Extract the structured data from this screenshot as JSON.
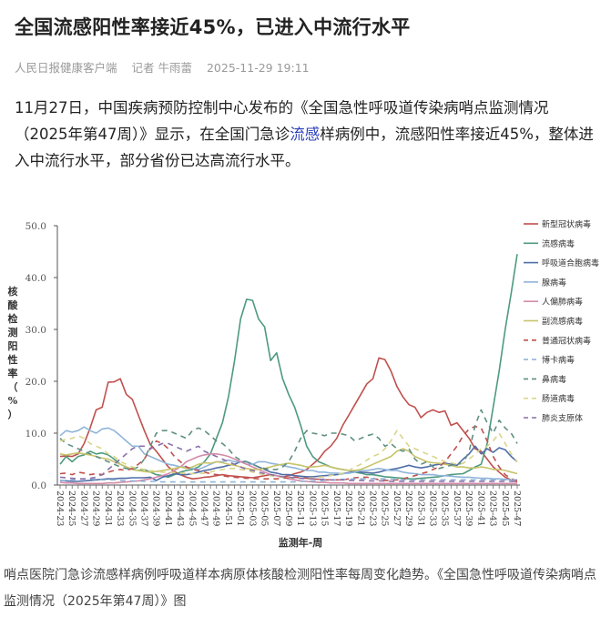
{
  "article": {
    "title": "全国流感阳性率接近45%，已进入中流行水平",
    "source": "人民日报健康客户端",
    "reporter": "记者 牛雨蕾",
    "timestamp": "2025-11-29 19:11",
    "lead_before": "11月27日，中国疾病预防控制中心发布的《全国急性呼吸道传染病哨点监测情况（2025年第47周）》显示，在全国门急诊",
    "lead_link": "流感",
    "lead_after": "样病例中，流感阳性率接近45%，整体进入中流行水平，部分省份已达高流行水平。",
    "caption": "哨点医院门急诊流感样病例呼吸道样本病原体核酸检测阳性率每周变化趋势。《全国急性呼吸道传染病哨点监测情况（2025年第47周）》图"
  },
  "chart_data": {
    "type": "line",
    "title": "",
    "xlabel": "监测年-周",
    "ylabel": "核酸检测阳性率（%）",
    "ylim": [
      0,
      50
    ],
    "yticks": [
      "0.0",
      "10.0",
      "20.0",
      "30.0",
      "40.0",
      "50.0"
    ],
    "grid": false,
    "legend_position": "right",
    "x_tick_labels": [
      "2024-23",
      "2024-25",
      "2024-27",
      "2024-29",
      "2024-31",
      "2024-33",
      "2024-35",
      "2024-37",
      "2024-39",
      "2024-41",
      "2024-43",
      "2024-45",
      "2024-47",
      "2024-49",
      "2024-51",
      "2025-01",
      "2025-03",
      "2025-05",
      "2025-07",
      "2025-09",
      "2025-11",
      "2025-13",
      "2025-15",
      "2025-17",
      "2025-19",
      "2025-21",
      "2025-23",
      "2025-25",
      "2025-27",
      "2025-29",
      "2025-31",
      "2025-33",
      "2025-35",
      "2025-37",
      "2025-39",
      "2025-41",
      "2025-43",
      "2025-45",
      "2025-47"
    ],
    "x_count": 77,
    "series": [
      {
        "name": "新型冠状病毒",
        "color": "#c0504d",
        "dash": false,
        "values": [
          5.5,
          5.6,
          5.5,
          6.0,
          8.0,
          11.0,
          14.5,
          15.0,
          19.8,
          19.9,
          20.5,
          17.5,
          16.5,
          13.5,
          10.5,
          7.8,
          6.5,
          5.0,
          3.5,
          2.6,
          2.0,
          1.5,
          1.2,
          1.3,
          1.5,
          1.6,
          1.8,
          2.0,
          1.8,
          1.7,
          1.6,
          1.5,
          1.4,
          1.6,
          1.8,
          2.0,
          1.8,
          1.5,
          1.8,
          2.2,
          2.5,
          3.0,
          4.0,
          5.0,
          6.5,
          7.5,
          9.0,
          11.5,
          13.5,
          15.5,
          17.5,
          19.5,
          20.5,
          24.5,
          24.2,
          22.0,
          19.0,
          17.0,
          15.5,
          15.0,
          13.0,
          14.0,
          14.5,
          14.0,
          14.3,
          11.5,
          12.0,
          10.5,
          9.0,
          7.0,
          6.5,
          5.0,
          3.5,
          2.5,
          1.5,
          1.0,
          0.6
        ]
      },
      {
        "name": "流感病毒",
        "color": "#4e9a7e",
        "dash": false,
        "values": [
          4.0,
          5.5,
          4.5,
          5.5,
          5.8,
          6.5,
          6.0,
          6.2,
          5.8,
          5.0,
          4.0,
          3.5,
          3.0,
          2.8,
          3.0,
          2.5,
          2.0,
          1.8,
          1.5,
          2.0,
          2.5,
          2.8,
          3.0,
          3.5,
          4.5,
          6.0,
          9.0,
          12.0,
          17.0,
          24.0,
          32.0,
          35.8,
          35.6,
          32.0,
          30.5,
          24.0,
          25.5,
          20.5,
          17.5,
          15.0,
          11.5,
          7.5,
          5.5,
          4.5,
          4.0,
          3.5,
          3.2,
          3.0,
          2.8,
          2.5,
          2.3,
          2.0,
          2.0,
          1.8,
          1.6,
          1.5,
          1.4,
          1.3,
          1.2,
          1.2,
          1.3,
          1.4,
          1.5,
          1.6,
          1.8,
          2.0,
          2.1,
          2.2,
          2.8,
          3.5,
          4.0,
          8.0,
          15.0,
          22.0,
          30.0,
          37.0,
          44.5
        ]
      },
      {
        "name": "呼吸道合胞病毒",
        "color": "#4f6ea8",
        "dash": false,
        "values": [
          0.9,
          0.8,
          0.7,
          0.7,
          0.8,
          0.9,
          1.0,
          1.1,
          1.2,
          1.2,
          1.3,
          1.3,
          1.4,
          1.4,
          1.4,
          1.5,
          0.9,
          1.5,
          1.8,
          2.2,
          2.0,
          2.0,
          2.2,
          2.5,
          2.8,
          3.0,
          3.3,
          3.5,
          3.8,
          4.0,
          4.5,
          4.5,
          4.0,
          3.5,
          3.0,
          2.5,
          2.3,
          2.0,
          2.0,
          1.8,
          1.7,
          1.6,
          1.6,
          1.7,
          1.8,
          1.9,
          2.0,
          2.2,
          2.4,
          2.6,
          2.5,
          2.4,
          2.3,
          2.5,
          2.8,
          3.0,
          3.2,
          3.5,
          3.8,
          3.5,
          3.3,
          3.5,
          3.8,
          4.0,
          4.2,
          4.0,
          3.8,
          5.0,
          6.0,
          7.5,
          6.0,
          7.0,
          6.3,
          7.2,
          6.8,
          5.5,
          4.5
        ]
      },
      {
        "name": "腺病毒",
        "color": "#8fb4d9",
        "dash": false,
        "values": [
          9.5,
          10.5,
          10.2,
          10.5,
          11.2,
          10.5,
          10.0,
          10.8,
          11.0,
          10.5,
          9.5,
          8.5,
          7.5,
          7.5,
          6.0,
          5.5,
          5.0,
          4.5,
          4.0,
          3.8,
          3.5,
          3.5,
          3.2,
          3.0,
          3.5,
          4.0,
          4.5,
          4.5,
          4.8,
          4.5,
          4.5,
          4.0,
          4.0,
          4.5,
          4.5,
          4.2,
          4.0,
          3.8,
          3.5,
          3.3,
          3.0,
          2.8,
          2.8,
          2.5,
          2.5,
          2.3,
          2.3,
          2.2,
          2.3,
          2.5,
          2.8,
          2.8,
          3.0,
          3.2,
          3.0,
          2.8,
          2.8,
          2.5,
          2.3,
          2.2,
          2.0,
          2.0,
          2.0,
          1.8,
          1.8,
          1.7,
          1.6,
          1.5,
          1.5,
          1.4,
          1.3,
          1.3,
          1.2,
          1.2,
          1.1,
          1.0,
          1.0
        ]
      },
      {
        "name": "人偏肺病毒",
        "color": "#d48aa8",
        "dash": false,
        "values": [
          0.5,
          0.4,
          0.4,
          0.3,
          0.3,
          0.3,
          0.3,
          0.3,
          0.4,
          0.4,
          0.5,
          0.6,
          0.7,
          0.8,
          1.0,
          1.2,
          1.5,
          1.8,
          2.2,
          2.8,
          3.5,
          4.5,
          5.0,
          5.5,
          5.8,
          6.0,
          6.0,
          5.8,
          5.5,
          5.0,
          4.5,
          4.0,
          3.5,
          3.0,
          2.5,
          2.0,
          1.8,
          1.5,
          1.2,
          1.0,
          0.8,
          0.7,
          0.6,
          0.5,
          0.5,
          0.4,
          0.4,
          0.4,
          0.3,
          0.3,
          0.3,
          0.3,
          0.3,
          0.3,
          0.3,
          0.3,
          0.3,
          0.3,
          0.3,
          0.3,
          0.3,
          0.3,
          0.3,
          0.3,
          0.3,
          0.3,
          0.3,
          0.3,
          0.3,
          0.3,
          0.3,
          0.3,
          0.3,
          0.3,
          0.3,
          0.3,
          0.3
        ]
      },
      {
        "name": "副流感病毒",
        "color": "#c7c46a",
        "dash": false,
        "values": [
          6.0,
          5.8,
          6.0,
          6.2,
          6.0,
          5.8,
          5.5,
          5.2,
          5.0,
          4.5,
          4.0,
          3.5,
          3.0,
          2.8,
          2.6,
          2.5,
          2.6,
          2.8,
          3.0,
          3.2,
          3.5,
          3.2,
          3.5,
          4.0,
          4.3,
          4.2,
          4.5,
          4.3,
          4.0,
          3.8,
          3.5,
          3.2,
          3.0,
          3.0,
          3.2,
          3.5,
          3.8,
          4.0,
          4.2,
          4.0,
          3.8,
          3.5,
          3.5,
          3.6,
          3.8,
          3.5,
          3.2,
          3.0,
          2.8,
          2.8,
          3.0,
          3.5,
          4.0,
          4.5,
          5.0,
          5.5,
          6.5,
          7.0,
          6.5,
          5.5,
          5.0,
          4.5,
          4.3,
          4.2,
          4.0,
          3.8,
          3.5,
          3.5,
          3.3,
          3.3,
          3.5,
          3.3,
          3.0,
          3.0,
          2.8,
          2.5,
          2.2
        ]
      },
      {
        "name": "普通冠状病毒",
        "color": "#c0504d",
        "dash": true,
        "values": [
          2.2,
          2.3,
          2.0,
          2.5,
          2.3,
          2.0,
          2.2,
          2.0,
          2.5,
          2.8,
          3.0,
          2.8,
          3.2,
          4.0,
          5.0,
          7.0,
          8.5,
          8.0,
          7.0,
          5.5,
          4.5,
          3.5,
          3.0,
          2.8,
          2.5,
          2.2,
          2.0,
          1.8,
          1.6,
          1.5,
          1.4,
          1.3,
          1.3,
          1.2,
          1.2,
          1.2,
          1.2,
          1.3,
          1.4,
          1.5,
          1.4,
          1.3,
          1.2,
          1.1,
          1.0,
          1.0,
          1.0,
          1.0,
          1.2,
          1.4,
          1.5,
          1.5,
          1.3,
          1.0,
          0.9,
          0.9,
          1.0,
          1.2,
          1.5,
          1.8,
          2.2,
          2.5,
          3.0,
          3.5,
          4.5,
          6.0,
          7.5,
          9.5,
          10.8,
          11.3,
          11.0,
          8.5,
          5.5,
          3.5,
          2.0,
          1.2,
          0.9
        ]
      },
      {
        "name": "博卡病毒",
        "color": "#8fb4d9",
        "dash": true,
        "values": [
          0.8,
          0.9,
          1.0,
          1.1,
          1.2,
          1.2,
          1.1,
          1.0,
          1.0,
          1.0,
          0.9,
          0.8,
          0.8,
          0.8,
          0.7,
          0.7,
          0.7,
          0.6,
          0.6,
          0.6,
          0.6,
          0.6,
          0.6,
          0.6,
          0.6,
          0.6,
          0.6,
          0.6,
          0.6,
          0.6,
          0.6,
          0.6,
          0.6,
          0.6,
          0.6,
          0.6,
          0.6,
          0.6,
          0.6,
          0.6,
          0.7,
          0.7,
          0.8,
          0.8,
          0.9,
          1.0,
          1.0,
          1.1,
          1.1,
          1.2,
          1.2,
          1.2,
          1.2,
          1.2,
          1.2,
          1.1,
          1.1,
          1.0,
          1.0,
          1.0,
          1.0,
          1.0,
          1.0,
          1.0,
          1.0,
          1.0,
          1.0,
          1.0,
          1.0,
          1.0,
          1.0,
          1.0,
          1.0,
          1.0,
          1.0,
          1.0,
          1.0
        ]
      },
      {
        "name": "鼻病毒",
        "color": "#5f8f82",
        "dash": true,
        "values": [
          9.0,
          8.0,
          7.5,
          7.0,
          6.5,
          6.0,
          5.5,
          5.0,
          4.5,
          4.0,
          3.5,
          3.2,
          3.0,
          3.5,
          5.0,
          7.5,
          10.0,
          10.5,
          10.5,
          10.0,
          9.5,
          9.0,
          10.5,
          11.0,
          10.5,
          9.5,
          8.5,
          8.0,
          7.0,
          5.5,
          4.8,
          4.5,
          4.0,
          3.5,
          3.2,
          3.0,
          3.0,
          3.5,
          4.5,
          6.5,
          9.0,
          10.5,
          10.0,
          9.8,
          9.5,
          10.0,
          10.0,
          9.8,
          9.5,
          8.5,
          9.0,
          9.5,
          9.8,
          9.0,
          7.5,
          8.0,
          7.0,
          6.5,
          7.0,
          5.0,
          4.0,
          4.5,
          3.5,
          3.2,
          3.5,
          3.8,
          4.0,
          4.2,
          6.5,
          11.5,
          14.5,
          12.0,
          10.0,
          12.5,
          11.0,
          10.0,
          8.0
        ]
      },
      {
        "name": "肠道病毒",
        "color": "#d9d58a",
        "dash": true,
        "values": [
          8.5,
          8.8,
          9.0,
          9.5,
          9.0,
          8.0,
          7.5,
          7.0,
          6.0,
          5.5,
          4.5,
          4.0,
          3.5,
          3.2,
          3.0,
          2.8,
          2.6,
          2.5,
          2.4,
          2.4,
          2.3,
          2.3,
          2.2,
          2.2,
          2.3,
          2.5,
          2.8,
          3.0,
          3.2,
          3.2,
          3.0,
          2.8,
          2.5,
          2.2,
          2.0,
          1.8,
          1.6,
          1.5,
          1.4,
          1.3,
          1.3,
          1.3,
          1.4,
          1.5,
          1.6,
          1.8,
          2.0,
          2.3,
          2.8,
          3.5,
          4.0,
          4.8,
          5.5,
          6.0,
          7.0,
          8.5,
          10.5,
          9.0,
          7.5,
          7.0,
          6.5,
          6.0,
          5.5,
          5.0,
          4.5,
          4.3,
          4.0,
          4.2,
          5.0,
          6.0,
          7.0,
          7.5,
          8.5,
          10.0,
          8.0,
          6.0,
          4.5
        ]
      },
      {
        "name": "肺炎支原体",
        "color": "#8a6fa8",
        "dash": true,
        "values": [
          1.5,
          1.4,
          1.3,
          1.2,
          1.2,
          1.3,
          1.5,
          2.0,
          3.0,
          4.0,
          5.0,
          6.0,
          7.0,
          7.5,
          7.5,
          7.0,
          7.5,
          8.0,
          8.0,
          7.5,
          7.0,
          6.5,
          7.0,
          7.5,
          6.5,
          6.0,
          5.5,
          5.0,
          4.5,
          4.0,
          3.5,
          3.0,
          2.8,
          2.5,
          2.2,
          2.0,
          1.8,
          1.6,
          1.5,
          1.4,
          1.3,
          1.2,
          1.2,
          1.1,
          1.1,
          1.0,
          1.0,
          1.0,
          0.9,
          0.9,
          0.9,
          0.8,
          0.8,
          0.8,
          0.8,
          0.7,
          0.7,
          0.7,
          0.7,
          0.7,
          0.7,
          0.7,
          0.7,
          0.7,
          0.7,
          0.7,
          0.7,
          0.7,
          0.7,
          0.7,
          0.7,
          0.7,
          0.7,
          0.7,
          0.7,
          0.7,
          0.7
        ]
      }
    ]
  }
}
